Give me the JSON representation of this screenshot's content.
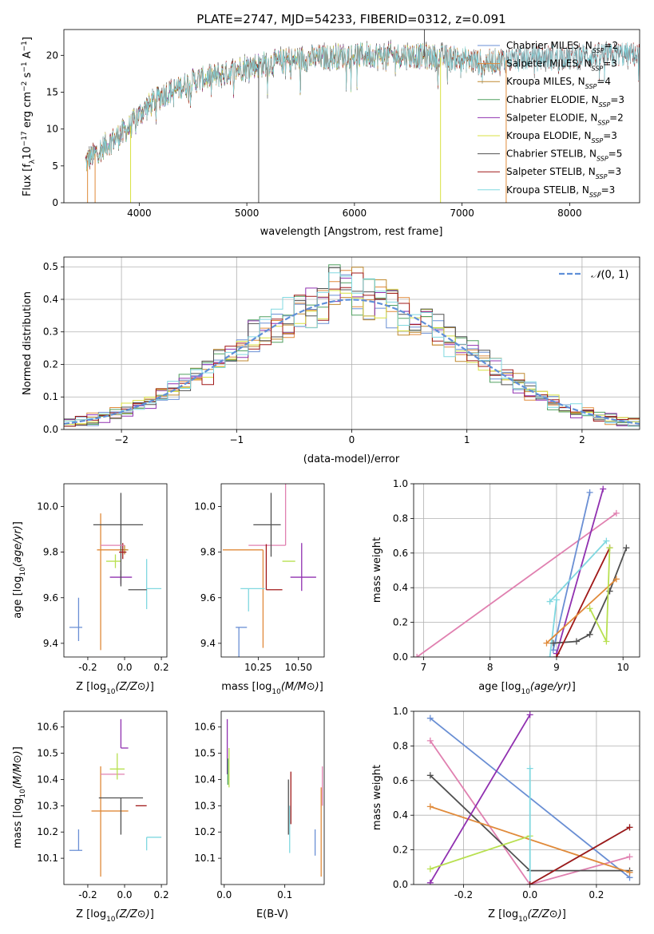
{
  "figure_title": "PLATE=2747, MJD=54233, FIBERID=0312, z=0.091",
  "colors": {
    "Chabrier MILES": "#6a8fd4",
    "Salpeter MILES": "#e08a3a",
    "Kroupa MILES": "#c08a30",
    "Chabrier ELODIE": "#50a060",
    "Salpeter ELODIE": "#9030b0",
    "Kroupa ELODIE": "#d8e040",
    "Chabrier STELIB": "#505050",
    "Salpeter STELIB": "#a01818",
    "Kroupa STELIB": "#80d8e0",
    "normal_curve": "#5f8fd8",
    "pink": "#e080b0",
    "lime": "#b8e050"
  },
  "legend": [
    {
      "name": "Chabrier MILES",
      "nssp": "2"
    },
    {
      "name": "Salpeter MILES",
      "nssp": "3"
    },
    {
      "name": "Kroupa MILES",
      "nssp": "4"
    },
    {
      "name": "Chabrier ELODIE",
      "nssp": "3"
    },
    {
      "name": "Salpeter ELODIE",
      "nssp": "2"
    },
    {
      "name": "Kroupa ELODIE",
      "nssp": "3"
    },
    {
      "name": "Chabrier STELIB",
      "nssp": "5"
    },
    {
      "name": "Salpeter STELIB",
      "nssp": "3"
    },
    {
      "name": "Kroupa STELIB",
      "nssp": "3"
    }
  ],
  "chart_data": [
    {
      "id": "spectrum",
      "type": "line",
      "xlabel": "wavelength [Angstrom, rest frame]",
      "ylabel": "Flux [f_λ10^-17 erg cm^-2 s^-1 A^-1]",
      "xlim": [
        3300,
        8650
      ],
      "ylim": [
        0,
        23.5
      ],
      "xticks": [
        4000,
        5000,
        6000,
        7000,
        8000
      ],
      "yticks": [
        0,
        5,
        10,
        15,
        20
      ],
      "grid": false,
      "legend_placement": "right",
      "envelope": [
        [
          3500,
          5.5
        ],
        [
          3700,
          8
        ],
        [
          3900,
          10
        ],
        [
          4000,
          12
        ],
        [
          4200,
          14.5
        ],
        [
          4500,
          16.5
        ],
        [
          4800,
          17.5
        ],
        [
          5000,
          18.5
        ],
        [
          5500,
          19.5
        ],
        [
          6000,
          20
        ],
        [
          6500,
          20
        ],
        [
          7000,
          19.5
        ],
        [
          7200,
          19
        ],
        [
          7500,
          19.5
        ],
        [
          8000,
          19.8
        ],
        [
          8500,
          20.2
        ],
        [
          8650,
          20
        ]
      ],
      "spikes": [
        {
          "x": 3520,
          "y": 0,
          "series": "Salpeter MILES"
        },
        {
          "x": 3590,
          "y": 0,
          "series": "Salpeter MILES"
        },
        {
          "x": 3920,
          "y": 0,
          "series": "Kroupa ELODIE"
        },
        {
          "x": 5110,
          "y": 0,
          "series": "Chabrier STELIB"
        },
        {
          "x": 6650,
          "y": 23.5,
          "series": "Chabrier STELIB"
        },
        {
          "x": 6800,
          "y": 0,
          "series": "Kroupa ELODIE"
        },
        {
          "x": 7410,
          "y": 0,
          "series": "Salpeter MILES"
        }
      ]
    },
    {
      "id": "residuals",
      "type": "histogram",
      "xlabel": "(data-model)/error",
      "ylabel": "Normed distribution",
      "xlim": [
        -2.5,
        2.5
      ],
      "ylim": [
        0,
        0.53
      ],
      "xticks": [
        -2,
        -1,
        0,
        1,
        2
      ],
      "yticks": [
        0.0,
        0.1,
        0.2,
        0.3,
        0.4,
        0.5
      ],
      "grid": true,
      "bin_width": 0.1,
      "legend_label": "N(0,1)",
      "legend_placement": "top-right"
    },
    {
      "id": "age_vs_Z",
      "type": "errorbar",
      "xlabel": "Z [log10(Z/Z⊙)]",
      "ylabel": "age  [log10(age/yr)]",
      "xlim": [
        -0.33,
        0.23
      ],
      "ylim": [
        9.34,
        10.1
      ],
      "xticks": [
        -0.2,
        0.0,
        0.2
      ],
      "yticks": [
        9.4,
        9.6,
        9.8,
        10.0
      ],
      "grid": false,
      "points": [
        {
          "color": "Chabrier MILES",
          "x": -0.25,
          "y": 9.47,
          "xerr": [
            0.05,
            0.02
          ],
          "yerr": [
            0.06,
            0.13
          ]
        },
        {
          "color": "Salpeter MILES",
          "x": -0.13,
          "y": 9.81,
          "xerr": [
            0.02,
            0.14
          ],
          "yerr": [
            0.44,
            0.16
          ]
        },
        {
          "color": "Kroupa MILES",
          "x": 0.0,
          "y": 9.81,
          "xerr": [
            0.02,
            0.02
          ],
          "yerr": [
            0.02,
            0.02
          ]
        },
        {
          "color": "Salpeter ELODIE",
          "x": -0.02,
          "y": 9.69,
          "xerr": [
            0.06,
            0.06
          ],
          "yerr": [
            0.03,
            0.03
          ]
        },
        {
          "color": "lime",
          "x": -0.05,
          "y": 9.76,
          "xerr": [
            0.05,
            0.03
          ],
          "yerr": [
            0.03,
            0.03
          ]
        },
        {
          "color": "Chabrier STELIB",
          "x": -0.02,
          "y": 9.92,
          "xerr": [
            0.15,
            0.12
          ],
          "yerr": [
            0.27,
            0.14
          ]
        },
        {
          "color": "Salpeter STELIB",
          "x": -0.01,
          "y": 9.8,
          "xerr": [
            0.02,
            0.02
          ],
          "yerr": [
            0.03,
            0.04
          ]
        },
        {
          "color": "pink",
          "x": 0.0,
          "y": 9.83,
          "xerr": [
            0.13,
            0.0
          ],
          "yerr": [
            0.0,
            0.0
          ]
        },
        {
          "color": "Kroupa STELIB",
          "x": 0.12,
          "y": 9.64,
          "xerr": [
            0.0,
            0.08
          ],
          "yerr": [
            0.09,
            0.13
          ]
        },
        {
          "color": "Chabrier STELIB",
          "x": 0.12,
          "y": 9.635,
          "xerr": [
            0.1,
            0.0
          ],
          "yerr": [
            0.0,
            0.0
          ]
        }
      ]
    },
    {
      "id": "age_vs_mass",
      "type": "errorbar",
      "xlabel": "mass [log10(M/M⊙)]",
      "ylabel": "",
      "xlim": [
        10.02,
        10.66
      ],
      "ylim": [
        9.34,
        10.1
      ],
      "xticks": [
        10.25,
        10.5
      ],
      "yticks": [
        9.4,
        9.6,
        9.8,
        10.0
      ],
      "grid": false,
      "points": [
        {
          "color": "Chabrier MILES",
          "x": 10.13,
          "y": 9.47,
          "xerr": [
            0.02,
            0.05
          ],
          "yerr": [
            0.13,
            0.0
          ]
        },
        {
          "color": "Salpeter MILES",
          "x": 10.28,
          "y": 9.81,
          "xerr": [
            0.25,
            0.0
          ],
          "yerr": [
            0.43,
            0.0
          ]
        },
        {
          "color": "pink",
          "x": 10.42,
          "y": 9.83,
          "xerr": [
            0.23,
            0.0
          ],
          "yerr": [
            0.0,
            0.43
          ]
        },
        {
          "color": "Chabrier STELIB",
          "x": 10.33,
          "y": 9.92,
          "xerr": [
            0.11,
            0.06
          ],
          "yerr": [
            0.14,
            0.14
          ]
        },
        {
          "color": "Salpeter STELIB",
          "x": 10.3,
          "y": 9.635,
          "xerr": [
            0.0,
            0.1
          ],
          "yerr": [
            0.0,
            0.2
          ]
        },
        {
          "color": "Kroupa STELIB",
          "x": 10.19,
          "y": 9.64,
          "xerr": [
            0.05,
            0.1
          ],
          "yerr": [
            0.1,
            0.0
          ]
        },
        {
          "color": "lime",
          "x": 10.44,
          "y": 9.76,
          "xerr": [
            0.04,
            0.04
          ],
          "yerr": [
            0.0,
            0.0
          ]
        },
        {
          "color": "Salpeter ELODIE",
          "x": 10.52,
          "y": 9.69,
          "xerr": [
            0.07,
            0.09
          ],
          "yerr": [
            0.06,
            0.15
          ]
        }
      ]
    },
    {
      "id": "mass_weight_vs_age",
      "type": "line",
      "xlabel": "age  [log10(age/yr)]",
      "ylabel": "mass weight",
      "xlim": [
        6.85,
        10.25
      ],
      "ylim": [
        0,
        1
      ],
      "xticks": [
        7,
        8,
        9,
        10
      ],
      "yticks": [
        0.0,
        0.2,
        0.4,
        0.6,
        0.8,
        1.0
      ],
      "grid": true,
      "series": [
        {
          "color": "pink",
          "x": [
            6.9,
            9.9
          ],
          "y": [
            0.0,
            0.83
          ]
        },
        {
          "color": "Chabrier MILES",
          "x": [
            8.95,
            9.5
          ],
          "y": [
            0.04,
            0.95
          ]
        },
        {
          "color": "Salpeter ELODIE",
          "x": [
            9.0,
            9.7
          ],
          "y": [
            0.02,
            0.97
          ]
        },
        {
          "color": "Kroupa STELIB",
          "x": [
            8.9,
            9.75
          ],
          "y": [
            0.32,
            0.67
          ]
        },
        {
          "color": "Kroupa STELIB",
          "x": [
            8.9,
            9.0
          ],
          "y": [
            0.0,
            0.33
          ]
        },
        {
          "color": "Chabrier STELIB",
          "x": [
            8.95,
            9.3,
            9.5,
            9.8,
            10.05
          ],
          "y": [
            0.08,
            0.09,
            0.13,
            0.38,
            0.63
          ]
        },
        {
          "color": "Salpeter STELIB",
          "x": [
            9.0,
            9.8
          ],
          "y": [
            0.0,
            0.63
          ]
        },
        {
          "color": "Salpeter MILES",
          "x": [
            8.85,
            9.9
          ],
          "y": [
            0.08,
            0.45
          ]
        },
        {
          "color": "lime",
          "x": [
            9.5,
            9.75,
            9.8
          ],
          "y": [
            0.28,
            0.09,
            0.63
          ]
        }
      ]
    },
    {
      "id": "mass_vs_Z",
      "type": "errorbar",
      "xlabel": "Z [log10(Z/Z⊙)]",
      "ylabel": "mass [log10(M/M⊙)]",
      "xlim": [
        -0.33,
        0.23
      ],
      "ylim": [
        10.0,
        10.66
      ],
      "xticks": [
        -0.2,
        0.0,
        0.2
      ],
      "yticks": [
        10.1,
        10.2,
        10.3,
        10.4,
        10.5,
        10.6
      ],
      "grid": false,
      "points": [
        {
          "color": "Chabrier MILES",
          "x": -0.25,
          "y": 10.13,
          "xerr": [
            0.05,
            0.02
          ],
          "yerr": [
            0.0,
            0.08
          ]
        },
        {
          "color": "Salpeter MILES",
          "x": -0.13,
          "y": 10.28,
          "xerr": [
            0.05,
            0.15
          ],
          "yerr": [
            0.25,
            0.17
          ]
        },
        {
          "color": "pink",
          "x": -0.13,
          "y": 10.42,
          "xerr": [
            0.0,
            0.13
          ],
          "yerr": [
            0.0,
            0.0
          ]
        },
        {
          "color": "Chabrier STELIB",
          "x": -0.02,
          "y": 10.33,
          "xerr": [
            0.12,
            0.12
          ],
          "yerr": [
            0.14,
            0.0
          ]
        },
        {
          "color": "lime",
          "x": -0.04,
          "y": 10.44,
          "xerr": [
            0.04,
            0.04
          ],
          "yerr": [
            0.04,
            0.06
          ]
        },
        {
          "color": "Salpeter ELODIE",
          "x": -0.02,
          "y": 10.52,
          "xerr": [
            0.0,
            0.04
          ],
          "yerr": [
            0.0,
            0.11
          ]
        },
        {
          "color": "Salpeter STELIB",
          "x": 0.12,
          "y": 10.3,
          "xerr": [
            0.06,
            0.0
          ],
          "yerr": [
            0.0,
            0.0
          ]
        },
        {
          "color": "Kroupa STELIB",
          "x": 0.12,
          "y": 10.18,
          "xerr": [
            0.0,
            0.08
          ],
          "yerr": [
            0.05,
            0.0
          ]
        }
      ]
    },
    {
      "id": "mass_vs_EBV",
      "type": "errorbar",
      "xlabel": "E(B-V)",
      "ylabel": "",
      "xlim": [
        -0.005,
        0.165
      ],
      "ylim": [
        10.0,
        10.66
      ],
      "xticks": [
        0.0,
        0.1
      ],
      "yticks": [
        10.1,
        10.2,
        10.3,
        10.4,
        10.5,
        10.6
      ],
      "grid": false,
      "points": [
        {
          "color": "Salpeter ELODIE",
          "x": 0.005,
          "y": 10.52,
          "xerr": [
            0.0,
            0.0
          ],
          "yerr": [
            0.1,
            0.11
          ]
        },
        {
          "color": "lime",
          "x": 0.008,
          "y": 10.44,
          "xerr": [
            0.0,
            0.0
          ],
          "yerr": [
            0.07,
            0.08
          ]
        },
        {
          "color": "Chabrier ELODIE",
          "x": 0.006,
          "y": 10.44,
          "xerr": [
            0.0,
            0.0
          ],
          "yerr": [
            0.06,
            0.04
          ]
        },
        {
          "color": "Chabrier STELIB",
          "x": 0.106,
          "y": 10.3,
          "xerr": [
            0.0,
            0.0
          ],
          "yerr": [
            0.11,
            0.1
          ]
        },
        {
          "color": "Salpeter STELIB",
          "x": 0.11,
          "y": 10.33,
          "xerr": [
            0.0,
            0.0
          ],
          "yerr": [
            0.1,
            0.1
          ]
        },
        {
          "color": "Kroupa STELIB",
          "x": 0.108,
          "y": 10.22,
          "xerr": [
            0.0,
            0.0
          ],
          "yerr": [
            0.1,
            0.08
          ]
        },
        {
          "color": "Chabrier MILES",
          "x": 0.15,
          "y": 10.16,
          "xerr": [
            0.0,
            0.0
          ],
          "yerr": [
            0.05,
            0.05
          ]
        },
        {
          "color": "Salpeter MILES",
          "x": 0.16,
          "y": 10.2,
          "xerr": [
            0.0,
            0.0
          ],
          "yerr": [
            0.17,
            0.17
          ]
        },
        {
          "color": "pink",
          "x": 0.162,
          "y": 10.3,
          "xerr": [
            0.0,
            0.0
          ],
          "yerr": [
            0.0,
            0.15
          ]
        }
      ]
    },
    {
      "id": "mass_weight_vs_Z",
      "type": "line",
      "xlabel": "Z [log10(Z/Z⊙)]",
      "ylabel": "mass weight",
      "xlim": [
        -0.35,
        0.33
      ],
      "ylim": [
        0,
        1
      ],
      "xticks": [
        -0.2,
        0.0,
        0.2
      ],
      "yticks": [
        0.0,
        0.2,
        0.4,
        0.6,
        0.8,
        1.0
      ],
      "grid": true,
      "series": [
        {
          "color": "Chabrier MILES",
          "x": [
            -0.3,
            0.3
          ],
          "y": [
            0.96,
            0.04
          ]
        },
        {
          "color": "pink",
          "x": [
            -0.3,
            0.0,
            0.3
          ],
          "y": [
            0.83,
            0.0,
            0.16
          ]
        },
        {
          "color": "Chabrier STELIB",
          "x": [
            -0.3,
            0.0,
            0.3
          ],
          "y": [
            0.63,
            0.08,
            0.08
          ]
        },
        {
          "color": "Salpeter MILES",
          "x": [
            -0.3,
            0.3
          ],
          "y": [
            0.45,
            0.07
          ]
        },
        {
          "color": "Salpeter ELODIE",
          "x": [
            -0.3,
            0.0
          ],
          "y": [
            0.01,
            0.98
          ]
        },
        {
          "color": "lime",
          "x": [
            -0.3,
            0.0
          ],
          "y": [
            0.09,
            0.28
          ]
        },
        {
          "color": "Kroupa STELIB",
          "x": [
            0.0,
            0.0,
            0.3
          ],
          "y": [
            0.67,
            0.0,
            0.33
          ]
        },
        {
          "color": "Salpeter STELIB",
          "x": [
            0.0,
            0.3
          ],
          "y": [
            0.0,
            0.33
          ]
        }
      ]
    }
  ]
}
